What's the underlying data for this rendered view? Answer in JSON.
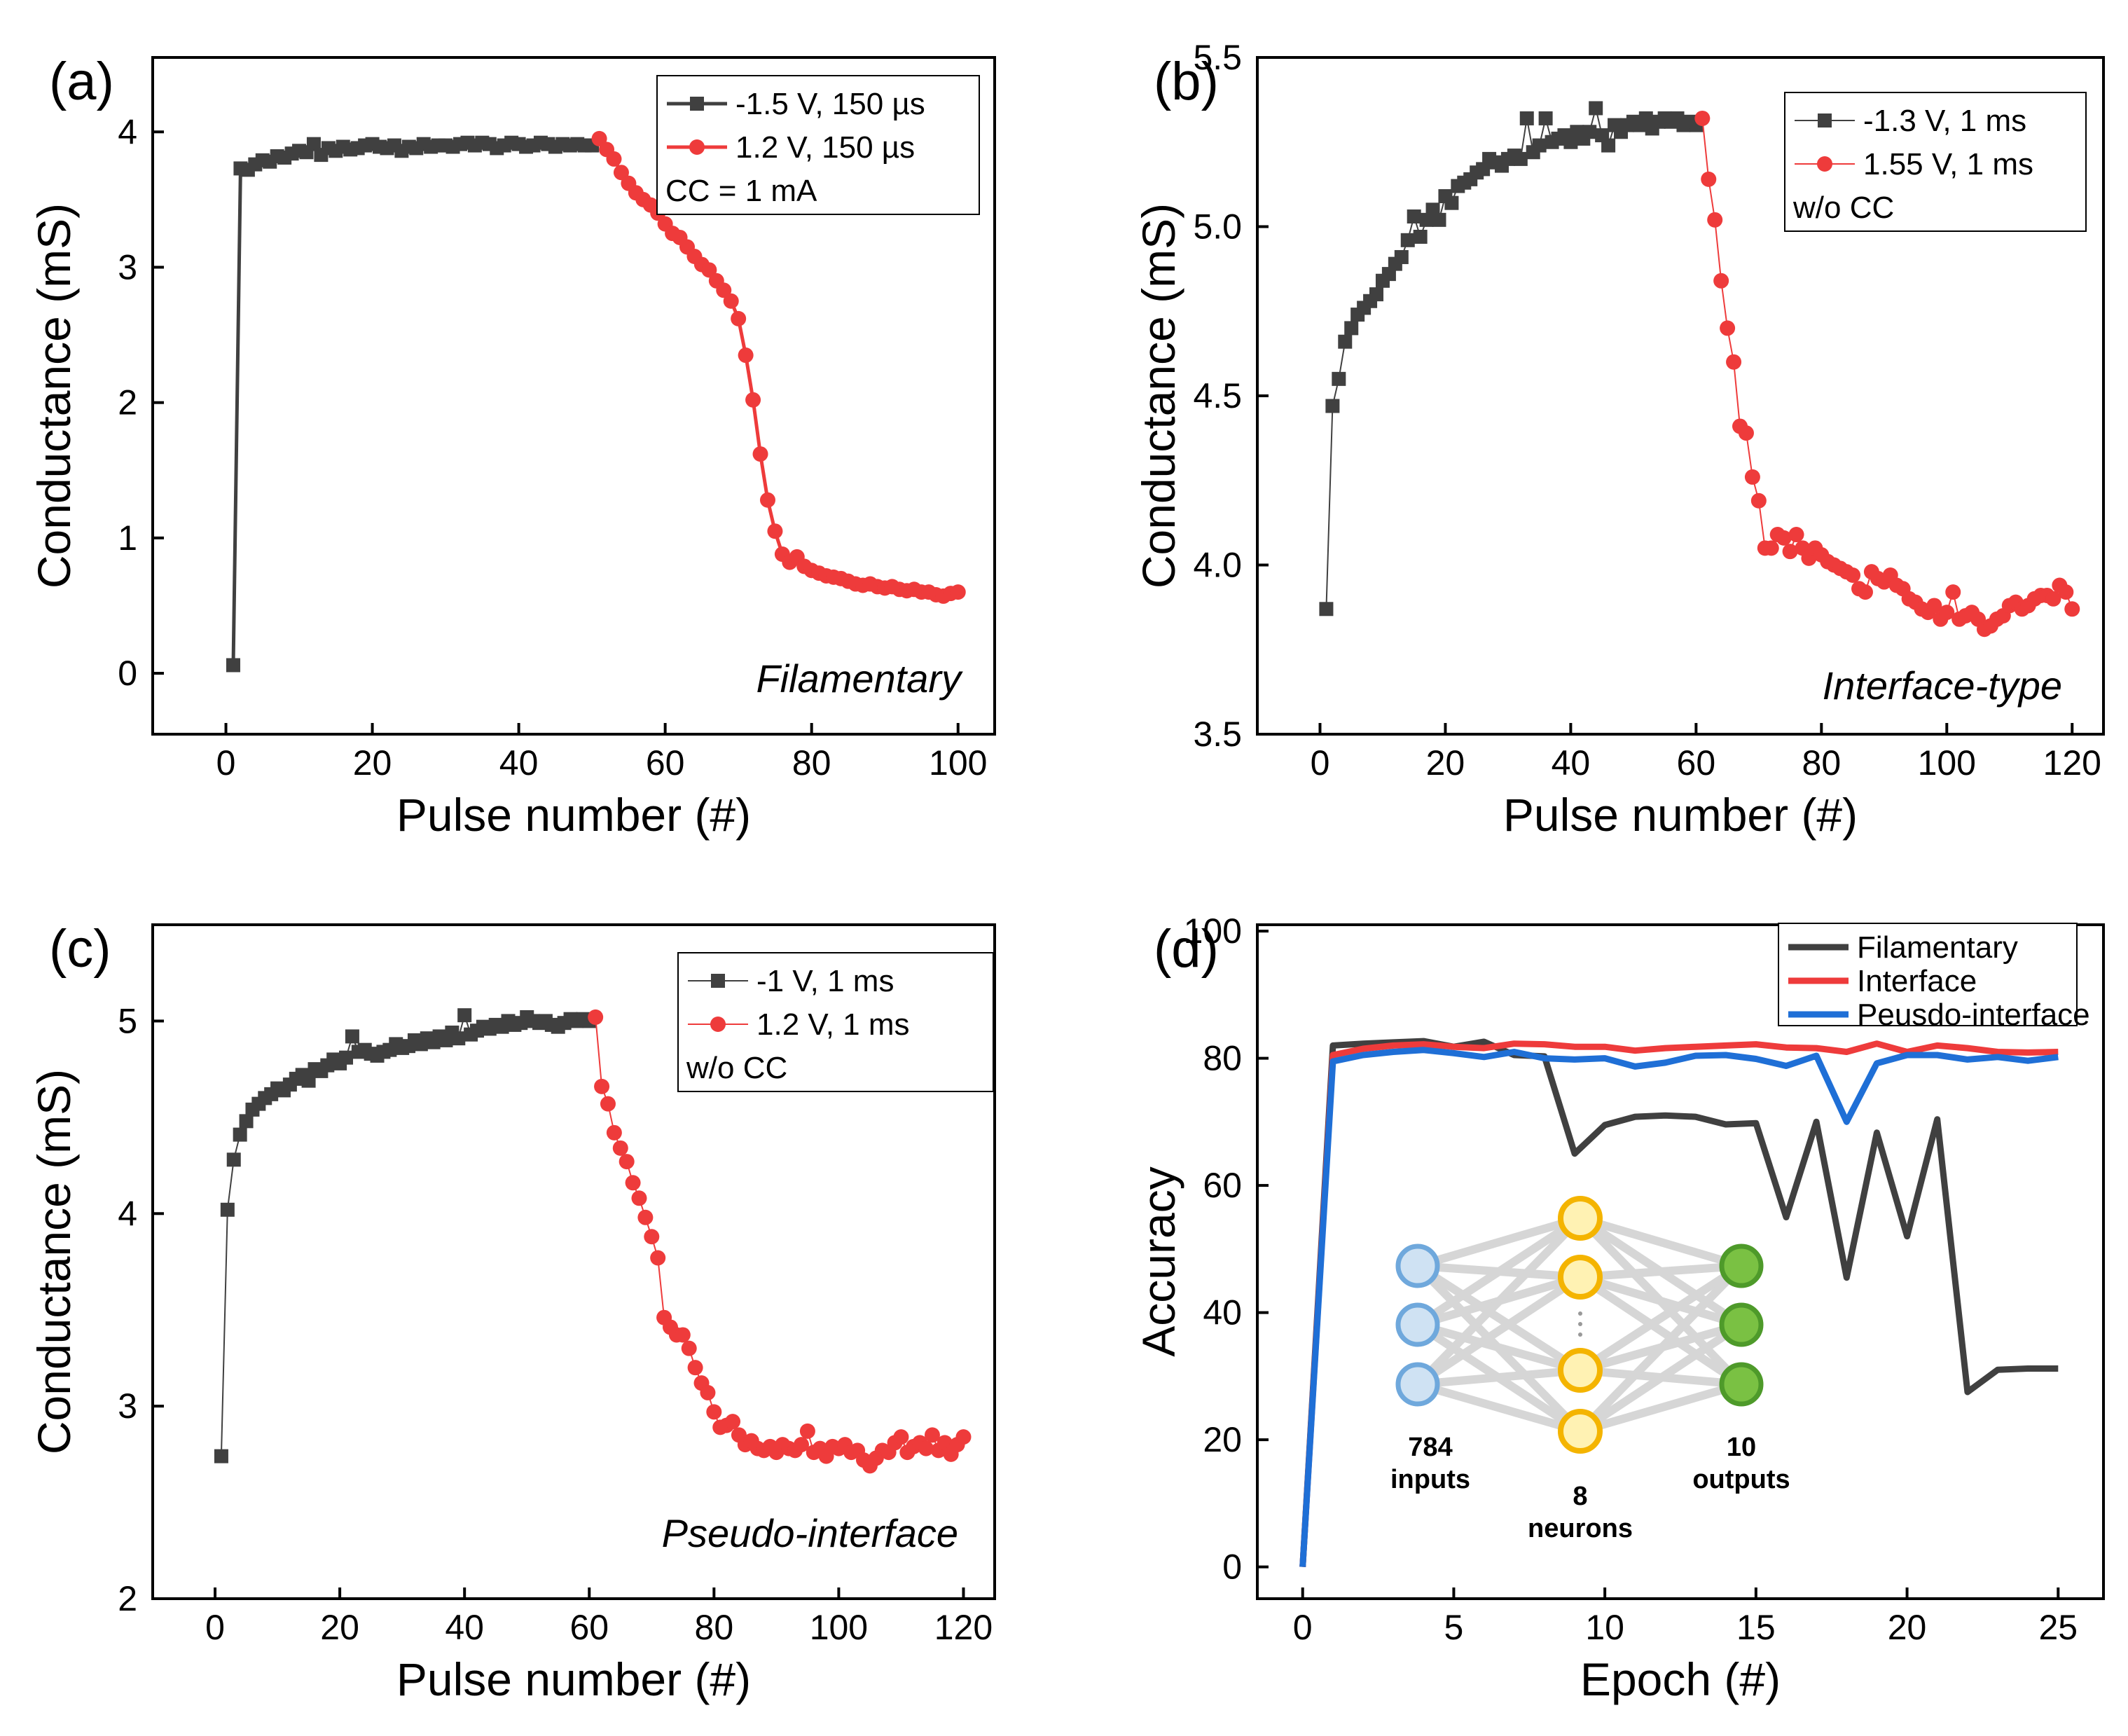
{
  "chart_data": [
    {
      "panel": "(a)",
      "type": "line",
      "xlabel": "Pulse number (#)",
      "ylabel": "Conductance (mS)",
      "xlim": [
        -10,
        105
      ],
      "ylim": [
        -0.45,
        4.55
      ],
      "xticks": [
        0,
        20,
        40,
        60,
        80,
        100
      ],
      "yticks": [
        0,
        1,
        2,
        3,
        4
      ],
      "annotation": "Filamentary",
      "legend": {
        "location": "top-right",
        "note": "CC = 1 mA"
      },
      "series": [
        {
          "name": "-1.5 V, 150 µs",
          "color": "#404040",
          "marker": "square",
          "line_width": "thick",
          "x_start": 1,
          "values": [
            0.06,
            3.73,
            3.72,
            3.76,
            3.79,
            3.78,
            3.82,
            3.81,
            3.84,
            3.86,
            3.85,
            3.91,
            3.83,
            3.88,
            3.86,
            3.89,
            3.87,
            3.88,
            3.9,
            3.91,
            3.89,
            3.88,
            3.9,
            3.86,
            3.89,
            3.88,
            3.91,
            3.89,
            3.9,
            3.9,
            3.89,
            3.91,
            3.92,
            3.9,
            3.92,
            3.91,
            3.88,
            3.9,
            3.92,
            3.91,
            3.89,
            3.9,
            3.92,
            3.91,
            3.89,
            3.91,
            3.9,
            3.91,
            3.9,
            3.9
          ]
        },
        {
          "name": "1.2 V, 150 µs",
          "color": "#ee3b3b",
          "marker": "circle",
          "line_width": "thick",
          "x_start": 51,
          "values": [
            3.95,
            3.87,
            3.8,
            3.7,
            3.62,
            3.55,
            3.5,
            3.46,
            3.4,
            3.32,
            3.25,
            3.22,
            3.15,
            3.08,
            3.02,
            2.98,
            2.9,
            2.83,
            2.75,
            2.62,
            2.35,
            2.02,
            1.62,
            1.28,
            1.05,
            0.88,
            0.82,
            0.86,
            0.79,
            0.76,
            0.74,
            0.72,
            0.71,
            0.7,
            0.68,
            0.66,
            0.65,
            0.66,
            0.64,
            0.63,
            0.64,
            0.62,
            0.61,
            0.62,
            0.6,
            0.6,
            0.58,
            0.57,
            0.59,
            0.6
          ]
        }
      ]
    },
    {
      "panel": "(b)",
      "type": "line",
      "xlabel": "Pulse number (#)",
      "ylabel": "Conductance (mS)",
      "xlim": [
        -10,
        125
      ],
      "ylim": [
        3.5,
        5.5
      ],
      "xticks": [
        0,
        20,
        40,
        60,
        80,
        100,
        120
      ],
      "yticks": [
        3.5,
        4.0,
        4.5,
        5.0,
        5.5
      ],
      "annotation": "Interface-type",
      "legend": {
        "location": "top-right",
        "note": "w/o CC"
      },
      "series": [
        {
          "name": "-1.3 V, 1 ms",
          "color": "#404040",
          "marker": "square",
          "line_width": "thin",
          "x_start": 1,
          "values": [
            3.87,
            4.47,
            4.55,
            4.66,
            4.7,
            4.74,
            4.76,
            4.78,
            4.8,
            4.84,
            4.86,
            4.89,
            4.91,
            4.96,
            5.03,
            4.97,
            5.02,
            5.05,
            5.02,
            5.09,
            5.07,
            5.12,
            5.13,
            5.14,
            5.16,
            5.17,
            5.2,
            5.19,
            5.18,
            5.2,
            5.21,
            5.2,
            5.32,
            5.22,
            5.24,
            5.32,
            5.25,
            5.26,
            5.27,
            5.25,
            5.28,
            5.26,
            5.28,
            5.35,
            5.27,
            5.24,
            5.3,
            5.28,
            5.3,
            5.31,
            5.3,
            5.32,
            5.29,
            5.31,
            5.32,
            5.31,
            5.32,
            5.3,
            5.31,
            5.3
          ]
        },
        {
          "name": "1.55 V, 1 ms",
          "color": "#ee3b3b",
          "marker": "circle",
          "line_width": "thin",
          "x_start": 61,
          "values": [
            5.32,
            5.14,
            5.02,
            4.84,
            4.7,
            4.6,
            4.41,
            4.39,
            4.26,
            4.19,
            4.05,
            4.05,
            4.09,
            4.08,
            4.04,
            4.09,
            4.05,
            4.02,
            4.05,
            4.03,
            4.01,
            4.0,
            3.99,
            3.98,
            3.97,
            3.93,
            3.92,
            3.98,
            3.96,
            3.95,
            3.97,
            3.94,
            3.93,
            3.9,
            3.89,
            3.87,
            3.86,
            3.88,
            3.84,
            3.86,
            3.92,
            3.84,
            3.85,
            3.86,
            3.84,
            3.81,
            3.82,
            3.84,
            3.85,
            3.88,
            3.89,
            3.87,
            3.88,
            3.9,
            3.91,
            3.91,
            3.9,
            3.94,
            3.92,
            3.87
          ]
        }
      ]
    },
    {
      "panel": "(c)",
      "type": "line",
      "xlabel": "Pulse number (#)",
      "ylabel": "Conductance (mS)",
      "xlim": [
        -10,
        125
      ],
      "ylim": [
        2,
        5.5
      ],
      "xticks": [
        0,
        20,
        40,
        60,
        80,
        100,
        120
      ],
      "yticks": [
        2,
        3,
        4,
        5
      ],
      "annotation": "Pseudo-interface",
      "legend": {
        "location": "top-right",
        "note": "w/o CC"
      },
      "series": [
        {
          "name": "-1 V, 1 ms",
          "color": "#404040",
          "marker": "square",
          "line_width": "thin",
          "x_start": 1,
          "values": [
            2.74,
            4.02,
            4.28,
            4.41,
            4.48,
            4.54,
            4.57,
            4.6,
            4.62,
            4.65,
            4.64,
            4.67,
            4.7,
            4.72,
            4.69,
            4.75,
            4.74,
            4.77,
            4.8,
            4.78,
            4.81,
            4.92,
            4.84,
            4.85,
            4.83,
            4.82,
            4.84,
            4.85,
            4.88,
            4.86,
            4.87,
            4.9,
            4.88,
            4.91,
            4.89,
            4.92,
            4.9,
            4.94,
            4.91,
            5.03,
            4.93,
            4.95,
            4.97,
            4.96,
            4.98,
            4.97,
            5.0,
            4.98,
            4.99,
            5.02,
            5.0,
            4.99,
            5.0,
            4.98,
            4.97,
            4.99,
            5.01,
            5.0,
            5.01,
            5.0
          ]
        },
        {
          "name": "1.2 V, 1 ms",
          "color": "#ee3b3b",
          "marker": "circle",
          "line_width": "thin",
          "x_start": 61,
          "values": [
            5.02,
            4.66,
            4.57,
            4.42,
            4.34,
            4.27,
            4.16,
            4.08,
            3.98,
            3.88,
            3.77,
            3.46,
            3.41,
            3.37,
            3.37,
            3.3,
            3.2,
            3.12,
            3.07,
            2.97,
            2.89,
            2.9,
            2.92,
            2.85,
            2.8,
            2.82,
            2.78,
            2.77,
            2.79,
            2.76,
            2.8,
            2.78,
            2.77,
            2.8,
            2.87,
            2.76,
            2.78,
            2.74,
            2.79,
            2.78,
            2.8,
            2.76,
            2.77,
            2.72,
            2.69,
            2.73,
            2.77,
            2.76,
            2.81,
            2.84,
            2.76,
            2.79,
            2.81,
            2.78,
            2.85,
            2.77,
            2.81,
            2.75,
            2.8,
            2.84
          ]
        }
      ]
    },
    {
      "panel": "(d)",
      "type": "line",
      "xlabel": "Epoch (#)",
      "ylabel": "Accuracy",
      "xlim": [
        -1.5,
        26.5
      ],
      "ylim": [
        -5,
        101
      ],
      "xticks": [
        0,
        5,
        10,
        15,
        20,
        25
      ],
      "yticks": [
        0,
        20,
        40,
        60,
        80,
        100
      ],
      "legend": {
        "location": "top-right"
      },
      "x": [
        0,
        1,
        2,
        3,
        4,
        5,
        6,
        7,
        8,
        9,
        10,
        11,
        12,
        13,
        14,
        15,
        16,
        17,
        18,
        19,
        20,
        21,
        22,
        23,
        24,
        25
      ],
      "series": [
        {
          "name": "Filamentary",
          "color": "#404040",
          "values": [
            0,
            82,
            82.3,
            82.5,
            82.7,
            81.8,
            82.6,
            80.5,
            80.3,
            65,
            69.5,
            70.8,
            71,
            70.8,
            69.6,
            69.8,
            55,
            70,
            45.5,
            68.3,
            52,
            70.4,
            27.5,
            31,
            31.2,
            31.2
          ]
        },
        {
          "name": "Interface",
          "color": "#ee3b3b",
          "values": [
            0,
            80.5,
            81.5,
            82,
            82.2,
            81.8,
            81.6,
            82.3,
            82.2,
            81.8,
            81.8,
            81.2,
            81.6,
            81.8,
            82,
            82.2,
            81.7,
            81.6,
            81,
            82.3,
            81,
            82,
            81.6,
            81,
            80.9,
            81
          ]
        },
        {
          "name": "Peusdo-interface",
          "color": "#1f6fd6",
          "values": [
            0,
            79.5,
            80.5,
            81,
            81.3,
            80.8,
            80.2,
            81,
            80,
            79.8,
            80,
            78.7,
            79.3,
            80.4,
            80.5,
            79.9,
            78.8,
            80.4,
            70,
            79.2,
            80.5,
            80.5,
            79.8,
            80.2,
            79.6,
            80.2
          ]
        }
      ],
      "inset": {
        "title": "network",
        "input_label": "784\ninputs",
        "hidden_label": "8\nneurons",
        "output_label": "10\noutputs",
        "input_color": "#cfe2f3",
        "hidden_color": "#fff2b3",
        "output_color": "#7ac143"
      }
    }
  ]
}
